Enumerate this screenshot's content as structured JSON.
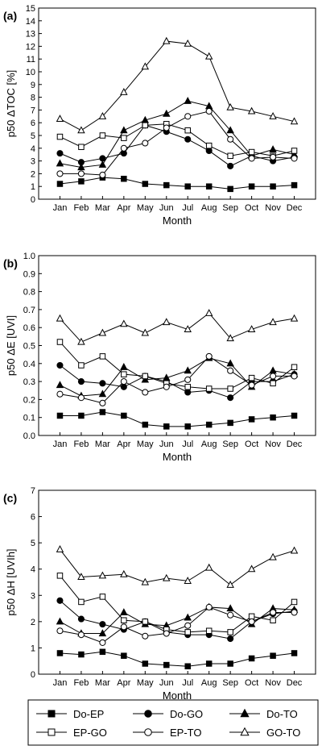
{
  "chart_data": [
    {
      "panel_label": "(a)",
      "type": "line",
      "xlabel": "Month",
      "ylabel": "p50 ΔTOC [%]",
      "ylim": [
        0,
        15
      ],
      "yticks": [
        0,
        1,
        2,
        3,
        4,
        5,
        6,
        7,
        8,
        9,
        10,
        11,
        12,
        13,
        14,
        15
      ],
      "categories": [
        "Jan",
        "Feb",
        "Mar",
        "Apr",
        "May",
        "Jun",
        "Jul",
        "Aug",
        "Sep",
        "Oct",
        "Nov",
        "Dec"
      ],
      "series": [
        {
          "name": "Do-EP",
          "values": [
            1.2,
            1.4,
            1.7,
            1.6,
            1.2,
            1.1,
            1.0,
            1.0,
            0.8,
            1.0,
            1.0,
            1.1
          ]
        },
        {
          "name": "Do-GO",
          "values": [
            3.6,
            2.9,
            3.2,
            3.6,
            5.8,
            5.3,
            4.7,
            3.8,
            2.6,
            3.4,
            3.0,
            3.3
          ]
        },
        {
          "name": "Do-TO",
          "values": [
            2.8,
            2.5,
            2.7,
            5.4,
            6.2,
            6.7,
            7.7,
            7.3,
            5.4,
            3.4,
            3.9,
            3.5
          ]
        },
        {
          "name": "EP-GO",
          "values": [
            4.9,
            4.1,
            5.0,
            4.8,
            5.8,
            5.9,
            5.4,
            4.2,
            3.4,
            3.7,
            3.4,
            3.8
          ]
        },
        {
          "name": "EP-TO",
          "values": [
            2.0,
            2.0,
            1.9,
            4.0,
            4.4,
            5.6,
            6.5,
            6.9,
            4.7,
            3.2,
            3.3,
            3.2
          ]
        },
        {
          "name": "GO-TO",
          "values": [
            6.3,
            5.4,
            6.5,
            8.4,
            10.4,
            12.4,
            12.2,
            11.2,
            7.2,
            6.9,
            6.5,
            6.1
          ]
        }
      ]
    },
    {
      "panel_label": "(b)",
      "type": "line",
      "xlabel": "Month",
      "ylabel": "p50 ΔE [UVI]",
      "ylim": [
        0.0,
        1.0
      ],
      "yticks": [
        0.0,
        0.1,
        0.2,
        0.3,
        0.4,
        0.5,
        0.6,
        0.7,
        0.8,
        0.9,
        1.0
      ],
      "categories": [
        "Jan",
        "Feb",
        "Mar",
        "Apr",
        "May",
        "Jun",
        "Jul",
        "Aug",
        "Sep",
        "Oct",
        "Nov",
        "Dec"
      ],
      "series": [
        {
          "name": "Do-EP",
          "values": [
            0.11,
            0.11,
            0.13,
            0.11,
            0.06,
            0.05,
            0.05,
            0.06,
            0.07,
            0.09,
            0.1,
            0.11
          ]
        },
        {
          "name": "Do-GO",
          "values": [
            0.39,
            0.3,
            0.29,
            0.27,
            0.33,
            0.3,
            0.24,
            0.25,
            0.21,
            0.3,
            0.3,
            0.34
          ]
        },
        {
          "name": "Do-TO",
          "values": [
            0.28,
            0.22,
            0.23,
            0.38,
            0.31,
            0.32,
            0.36,
            0.43,
            0.4,
            0.27,
            0.36,
            0.34
          ]
        },
        {
          "name": "EP-GO",
          "values": [
            0.52,
            0.39,
            0.44,
            0.34,
            0.33,
            0.29,
            0.27,
            0.26,
            0.26,
            0.32,
            0.29,
            0.38
          ]
        },
        {
          "name": "EP-TO",
          "values": [
            0.23,
            0.21,
            0.18,
            0.3,
            0.24,
            0.27,
            0.31,
            0.44,
            0.36,
            0.28,
            0.33,
            0.33
          ]
        },
        {
          "name": "GO-TO",
          "values": [
            0.65,
            0.52,
            0.57,
            0.62,
            0.57,
            0.63,
            0.59,
            0.68,
            0.54,
            0.59,
            0.63,
            0.65
          ]
        }
      ]
    },
    {
      "panel_label": "(c)",
      "type": "line",
      "xlabel": "Month",
      "ylabel": "p50 ΔH [UVIh]",
      "ylim": [
        0,
        7
      ],
      "yticks": [
        0,
        1,
        2,
        3,
        4,
        5,
        6,
        7
      ],
      "categories": [
        "Jan",
        "Feb",
        "Mar",
        "Apr",
        "May",
        "Jun",
        "Jul",
        "Aug",
        "Sep",
        "Oct",
        "Nov",
        "Dec"
      ],
      "series": [
        {
          "name": "Do-EP",
          "values": [
            0.8,
            0.75,
            0.85,
            0.7,
            0.4,
            0.35,
            0.3,
            0.4,
            0.4,
            0.6,
            0.7,
            0.8
          ]
        },
        {
          "name": "Do-GO",
          "values": [
            2.8,
            2.1,
            1.9,
            1.7,
            2.0,
            1.6,
            1.5,
            1.5,
            1.35,
            2.0,
            2.3,
            2.4
          ]
        },
        {
          "name": "Do-TO",
          "values": [
            2.0,
            1.55,
            1.55,
            2.35,
            1.9,
            1.85,
            2.15,
            2.55,
            2.5,
            1.9,
            2.5,
            2.45
          ]
        },
        {
          "name": "EP-GO",
          "values": [
            3.75,
            2.75,
            2.95,
            2.05,
            2.0,
            1.7,
            1.6,
            1.65,
            1.6,
            2.2,
            2.05,
            2.75
          ]
        },
        {
          "name": "EP-TO",
          "values": [
            1.65,
            1.5,
            1.2,
            1.8,
            1.45,
            1.55,
            1.85,
            2.55,
            2.25,
            2.0,
            2.35,
            2.35
          ]
        },
        {
          "name": "GO-TO",
          "values": [
            4.75,
            3.7,
            3.75,
            3.8,
            3.5,
            3.65,
            3.55,
            4.05,
            3.4,
            4.0,
            4.45,
            4.7
          ]
        }
      ]
    }
  ],
  "legend": {
    "placement": "bottom",
    "entries": [
      {
        "name": "Do-EP",
        "marker": "square",
        "fill": "filled"
      },
      {
        "name": "Do-GO",
        "marker": "circle",
        "fill": "filled"
      },
      {
        "name": "Do-TO",
        "marker": "triangle",
        "fill": "filled"
      },
      {
        "name": "EP-GO",
        "marker": "square",
        "fill": "open"
      },
      {
        "name": "EP-TO",
        "marker": "circle",
        "fill": "open"
      },
      {
        "name": "GO-TO",
        "marker": "triangle",
        "fill": "open"
      }
    ]
  },
  "colors": {
    "line": "#000000",
    "open_fill": "#ffffff",
    "background": "#ffffff"
  }
}
